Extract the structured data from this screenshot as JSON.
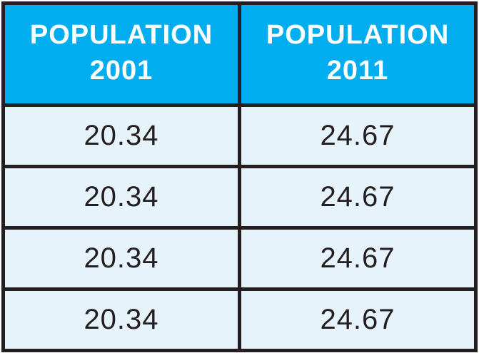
{
  "chart_data": {
    "type": "table",
    "columns": [
      {
        "title": "POPULATION",
        "year": "2001"
      },
      {
        "title": "POPULATION",
        "year": "2011"
      }
    ],
    "rows": [
      [
        "20.34",
        "24.67"
      ],
      [
        "20.34",
        "24.67"
      ],
      [
        "20.34",
        "24.67"
      ],
      [
        "20.34",
        "24.67"
      ]
    ]
  },
  "colors": {
    "header_bg": "#00AEEF",
    "header_text": "#FFFFFF",
    "row_bg": "#E7F3FB",
    "cell_text": "#231F20",
    "border": "#231F20"
  }
}
